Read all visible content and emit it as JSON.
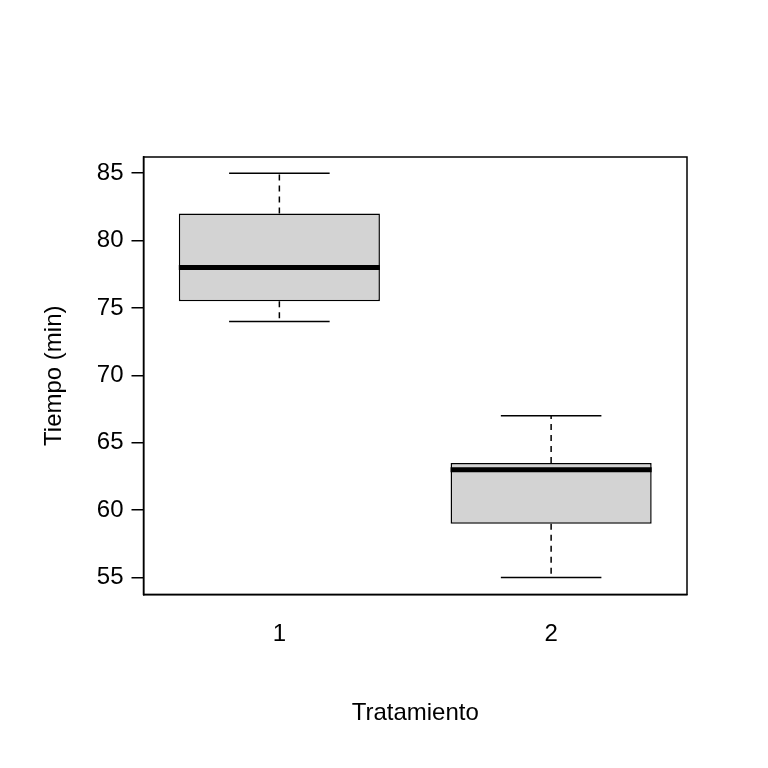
{
  "chart_data": {
    "type": "boxplot",
    "x_label": "Tratamiento",
    "y_label": "Tiempo (min)",
    "categories": [
      "1",
      "2"
    ],
    "boxes": [
      {
        "min": 74,
        "q1": 75.5,
        "median": 78,
        "q3": 82,
        "max": 85
      },
      {
        "min": 55,
        "q1": 59,
        "median": 63,
        "q3": 63.5,
        "max": 67
      }
    ],
    "color": "#d3d3d3",
    "ylim": [
      53.75,
      86.2
    ],
    "yticks": [
      55,
      60,
      65,
      70,
      75,
      80,
      85
    ],
    "grid": false
  }
}
